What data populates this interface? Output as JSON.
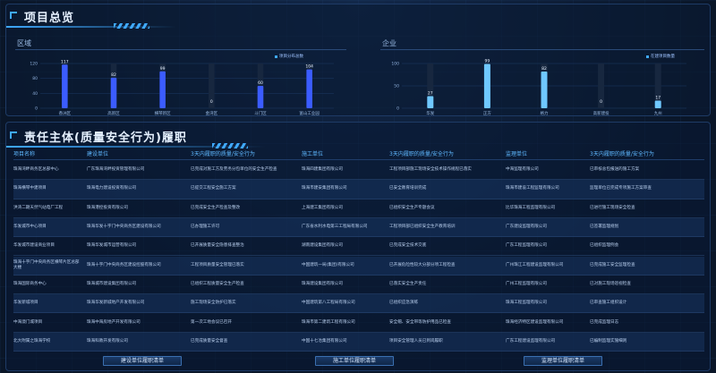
{
  "overview": {
    "title": "项目总览",
    "district_label": "区域",
    "company_label": "企业",
    "district_legend": "项目分布总数",
    "company_legend": "在建项目数量"
  },
  "chart_data": [
    {
      "type": "bar",
      "categories": [
        "香洲区",
        "高新区",
        "横琴新区",
        "金湾区",
        "斗门区",
        "富山工业园"
      ],
      "values": [
        117,
        82,
        99,
        0,
        60,
        104
      ],
      "ylim": [
        0,
        120
      ],
      "yticks": [
        0,
        40,
        80,
        120
      ],
      "color": "#3b5cff"
    },
    {
      "type": "bar",
      "categories": [
        "华发",
        "正方",
        "格力",
        "高新建投",
        "九州"
      ],
      "values": [
        27,
        99,
        82,
        0,
        17
      ],
      "ylim": [
        0,
        100
      ],
      "yticks": [
        0,
        50,
        100
      ],
      "color": "#6fc8ff"
    }
  ],
  "responsibility": {
    "title": "责任主体(质量安全行为)履职",
    "headers": [
      "项目名称",
      "建设单位",
      "3天内履职的质量/安全行为",
      "施工单位",
      "3天内履职的质量/安全行为",
      "监理单位",
      "3天内履职的质量/安全行为"
    ],
    "rows": [
      [
        "珠海湾畔商务区总部中心",
        "广东珠海湾畔投资管理有限公司",
        "已完成对施工方及劳务分包单位的安全生产检查",
        "珠海四建集团有限公司",
        "工程项目部施工现场安全技术操作规程已落实",
        "中海监理有限公司",
        "已审核总包报送的施工方案"
      ],
      [
        "珠海横琴中建项目",
        "珠海电力建设投资有限公司",
        "已提交工程安全施工方案",
        "珠海市建安集团有限公司",
        "已安全教育培训完成",
        "珠海市建设工程监理有限公司",
        "监理单位已完成专项施工方案审查"
      ],
      [
        "洪湾二期天然气站电厂工程",
        "珠海港控投资有限公司",
        "已完成安全生产检查及整改",
        "上海建工集团有限公司",
        "已组织安全生产专题会议",
        "比华珠海工程监理有限公司",
        "已进行施工现场安全检查"
      ],
      [
        "华发城市中心项目",
        "珠海华发十字门中央商务区建设有限公司",
        "已办理施工许可",
        "广东省水利水电第三工程局有限公司",
        "工程项目部已组织安全生产教育培训",
        "广东建设监理有限公司",
        "已签署监理规划"
      ],
      [
        "华发城市建设商业项目",
        "珠海华发城市运营有限公司",
        "已开展质量安全隐患排查整治",
        "湖南建设集团有限公司",
        "已完成安全技术交底",
        "广东工程监理有限公司",
        "已组织监理例会"
      ],
      [
        "珠海十字门中央商务区横琴片区总部大楼",
        "珠海十字门中央商务区建设控股有限公司",
        "工程项目质量安全管理已落实",
        "中国建筑一局(集团)有限公司",
        "已开展危险性较大分部分项工程检查",
        "广州珠江工程建设监理有限公司",
        "已完成施工安全监理检查"
      ],
      [
        "珠海国际商务中心",
        "珠海城市建设集团有限公司",
        "已组织工程质量安全生产检查",
        "珠海建设集团有限公司",
        "已落实安全生产责任",
        "广州工程监理有限公司",
        "已对施工现场巡视检查"
      ],
      [
        "华发新城项目",
        "珠海华发新城地产开发有限公司",
        "施工现场安全防护已落实",
        "中国建筑第八工程局有限公司",
        "已组织应急演练",
        "珠海工程监理有限公司",
        "已审查施工组织设计"
      ],
      [
        "中海澳门城项目",
        "珠海中海房地产开发有限公司",
        "第一次工地会议已召开",
        "珠海市第二建筑工程有限公司",
        "安全帽、安全带等防护用品已检查",
        "珠海经济特区建设监理有限公司",
        "已完成监理日志"
      ],
      [
        "北大附属之珠海学校",
        "珠海科教开发有限公司",
        "已完成质量安全督查",
        "中国十七冶集团有限公司",
        "项目安全管理人员已到岗履职",
        "广东工程建设监理有限公司",
        "已编制监理实施细则"
      ]
    ]
  },
  "buttons": {
    "build": "建设单位履职清单",
    "construct": "施工单位履职清单",
    "supervise": "监理单位履职清单"
  }
}
